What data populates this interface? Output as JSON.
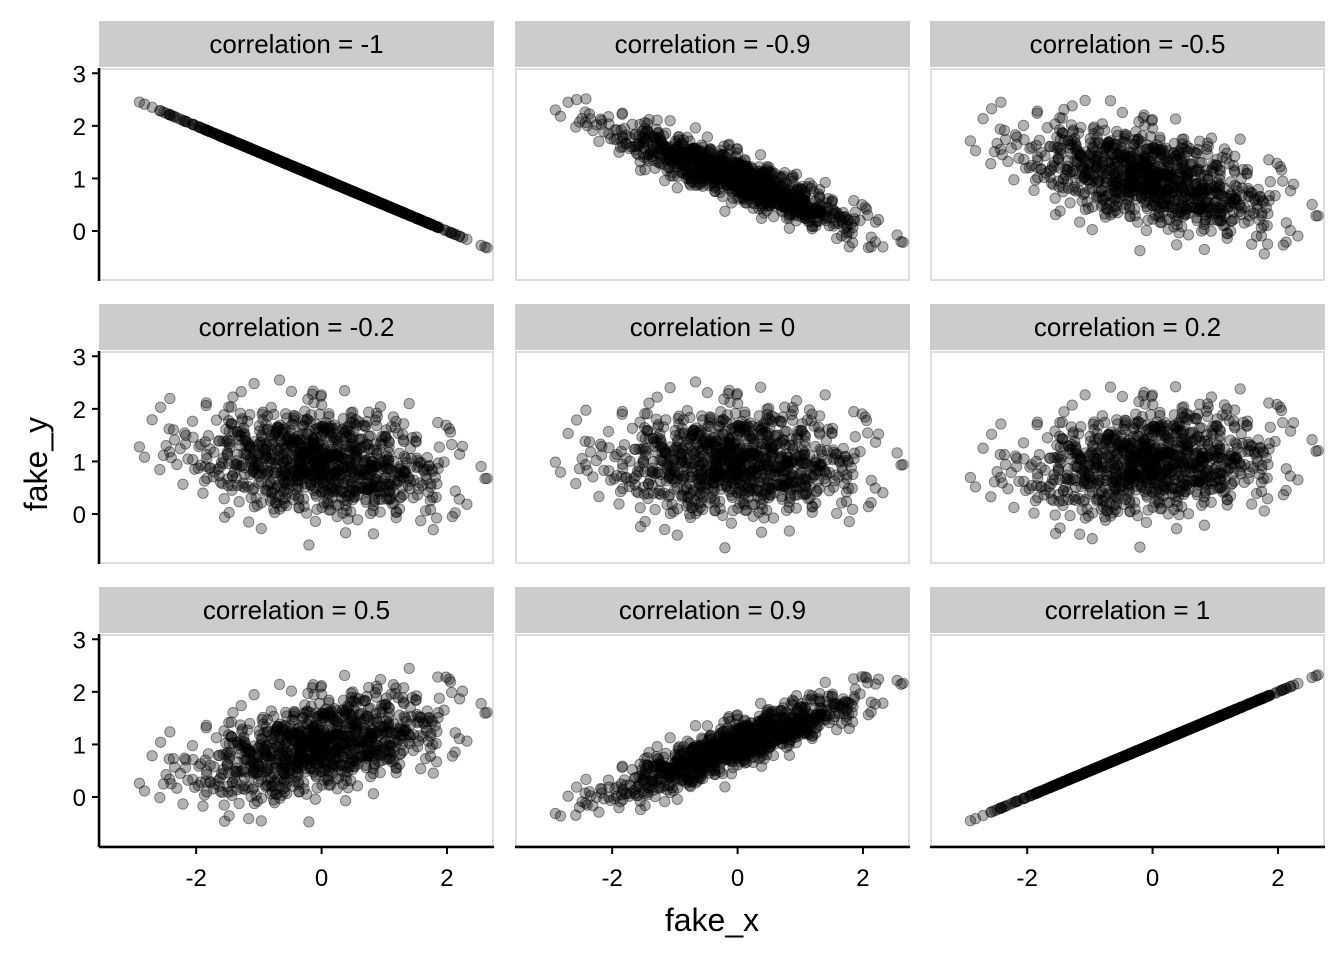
{
  "chart_data": {
    "type": "scatter",
    "xlabel": "fake_x",
    "ylabel": "fake_y",
    "xlim": [
      -3.55,
      2.75
    ],
    "ylim": [
      -0.95,
      3.1
    ],
    "x_ticks": [
      -2,
      0,
      2
    ],
    "y_ticks": [
      0,
      1,
      2,
      3
    ],
    "grid": false,
    "point_color": "#000000",
    "point_alpha": 0.3,
    "panel_border_color": "#dddddd",
    "strip_fill": "#cccccc",
    "n_points_per_panel": 1000,
    "x_distribution": {
      "mean": 0,
      "sd": 1
    },
    "y_distribution": {
      "mean": 1,
      "sd": 0.5
    },
    "panels": [
      {
        "label": "correlation = -1",
        "correlation": -1
      },
      {
        "label": "correlation = -0.9",
        "correlation": -0.9
      },
      {
        "label": "correlation = -0.5",
        "correlation": -0.5
      },
      {
        "label": "correlation = -0.2",
        "correlation": -0.2
      },
      {
        "label": "correlation = 0",
        "correlation": 0
      },
      {
        "label": "correlation = 0.2",
        "correlation": 0.2
      },
      {
        "label": "correlation = 0.5",
        "correlation": 0.5
      },
      {
        "label": "correlation = 0.9",
        "correlation": 0.9
      },
      {
        "label": "correlation = 1",
        "correlation": 1
      }
    ]
  }
}
